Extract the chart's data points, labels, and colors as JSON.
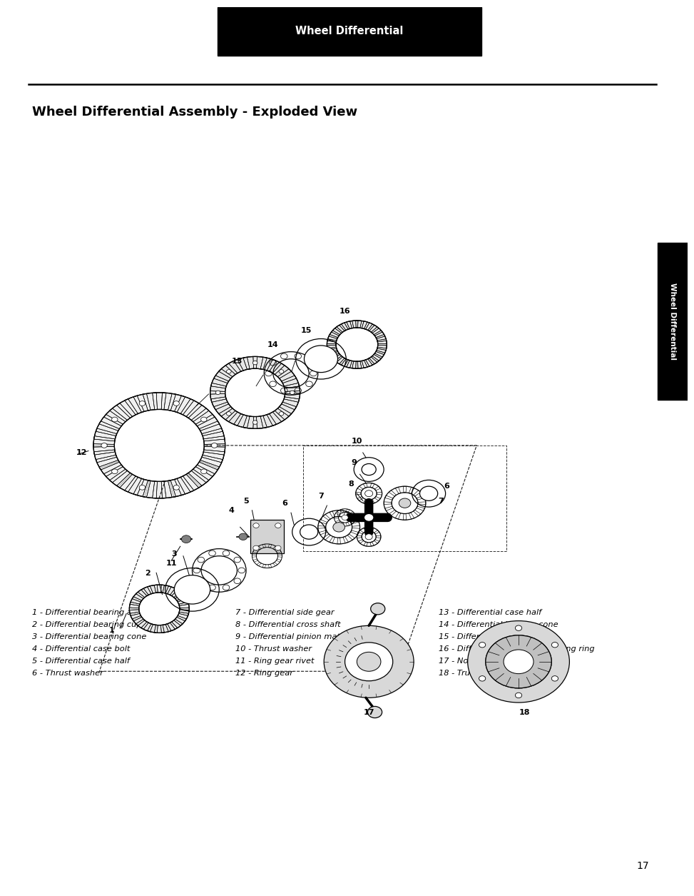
{
  "header_text": "Wheel Differential",
  "header_bg": "#000000",
  "header_text_color": "#ffffff",
  "title": "Wheel Differential Assembly - Exploded View",
  "title_fontsize": 13,
  "page_bg": "#ffffff",
  "page_number": "17",
  "side_tab_text": "Wheel Differential",
  "side_tab_bg": "#000000",
  "side_tab_text_color": "#ffffff",
  "legend_col1": [
    "1 - Differential bearing adjusting ring",
    "2 - Differential bearing cup",
    "3 - Differential bearing cone",
    "4 - Differential case bolt",
    "5 - Differential case half",
    "6 - Thrust washer"
  ],
  "legend_col2": [
    "7 - Differential side gear",
    "8 - Differential cross shaft",
    "9 - Differential pinion mate",
    "10 - Thrust washer",
    "11 - Ring gear rivet",
    "12 - Ring gear"
  ],
  "legend_col3": [
    "13 - Differential case half",
    "14 - Differential bearing cone",
    "15 - Differential bearing cup",
    "16 - Differential bearing adjusting ring",
    "17 - No-Spin (optional)",
    "18 - Truetrac (optional)"
  ],
  "legend_fontsize": 8.2
}
